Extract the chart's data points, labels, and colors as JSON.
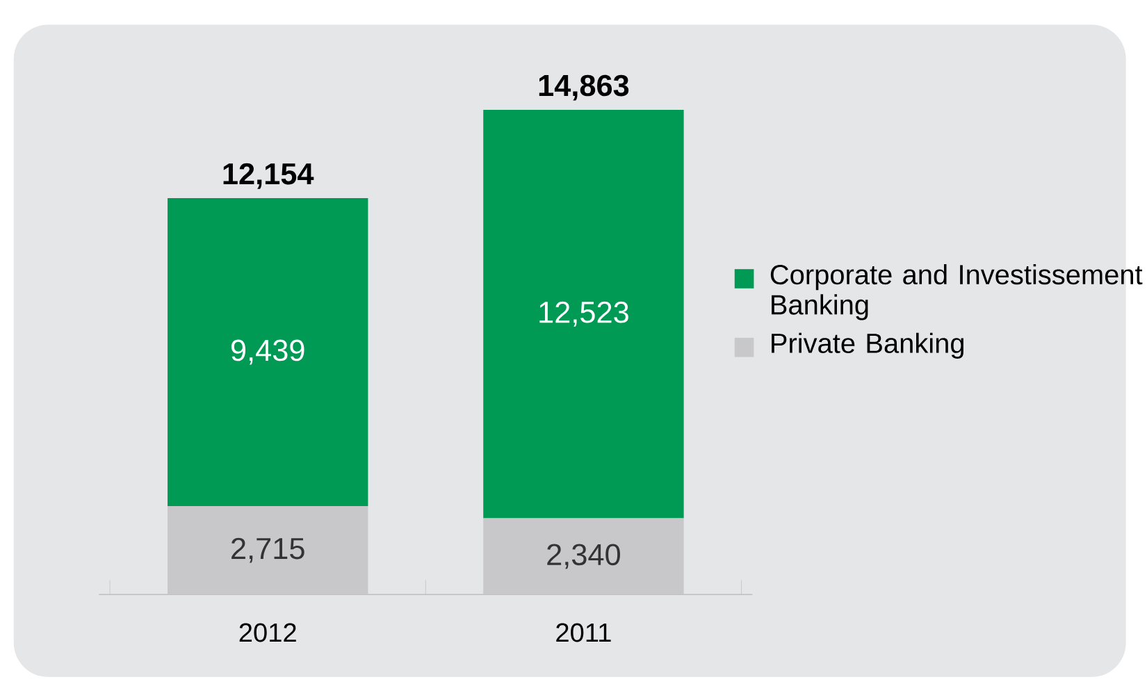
{
  "chart_data": {
    "type": "bar",
    "stacked": true,
    "categories": [
      "2012",
      "2011"
    ],
    "series": [
      {
        "name": "Private Banking",
        "color": "#c8c8ca",
        "values": [
          2715,
          2340
        ],
        "value_labels": [
          "2,715",
          "2,340"
        ]
      },
      {
        "name": "Corporate and Investissement Banking",
        "color": "#009a55",
        "values": [
          9439,
          12523
        ],
        "value_labels": [
          "9,439",
          "12,523"
        ]
      }
    ],
    "totals": [
      "12,154",
      "14,863"
    ],
    "legend": "right"
  }
}
